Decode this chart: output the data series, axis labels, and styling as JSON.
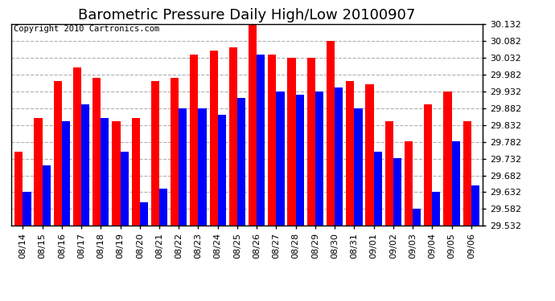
{
  "title": "Barometric Pressure Daily High/Low 20100907",
  "copyright": "Copyright 2010 Cartronics.com",
  "dates": [
    "08/14",
    "08/15",
    "08/16",
    "08/17",
    "08/18",
    "08/19",
    "08/20",
    "08/21",
    "08/22",
    "08/23",
    "08/24",
    "08/25",
    "08/26",
    "08/27",
    "08/28",
    "08/29",
    "08/30",
    "08/31",
    "09/01",
    "09/02",
    "09/03",
    "09/04",
    "09/05",
    "09/06"
  ],
  "highs": [
    29.753,
    29.853,
    29.963,
    30.003,
    29.973,
    29.843,
    29.853,
    29.963,
    29.973,
    30.043,
    30.053,
    30.063,
    30.133,
    30.043,
    30.033,
    30.033,
    30.083,
    29.963,
    29.953,
    29.843,
    29.783,
    29.893,
    29.933,
    29.843
  ],
  "lows": [
    29.633,
    29.713,
    29.843,
    29.893,
    29.853,
    29.753,
    29.603,
    29.643,
    29.883,
    29.883,
    29.863,
    29.913,
    30.043,
    29.933,
    29.923,
    29.933,
    29.943,
    29.883,
    29.753,
    29.733,
    29.583,
    29.633,
    29.783,
    29.653
  ],
  "ylim_min": 29.532,
  "ylim_max": 30.133,
  "ytick_step": 0.05,
  "bar_width": 0.42,
  "high_color": "#ff0000",
  "low_color": "#0000ff",
  "bg_color": "#ffffff",
  "grid_color": "#b0b0b0",
  "title_fontsize": 13,
  "axis_fontsize": 8,
  "copyright_fontsize": 7.5
}
